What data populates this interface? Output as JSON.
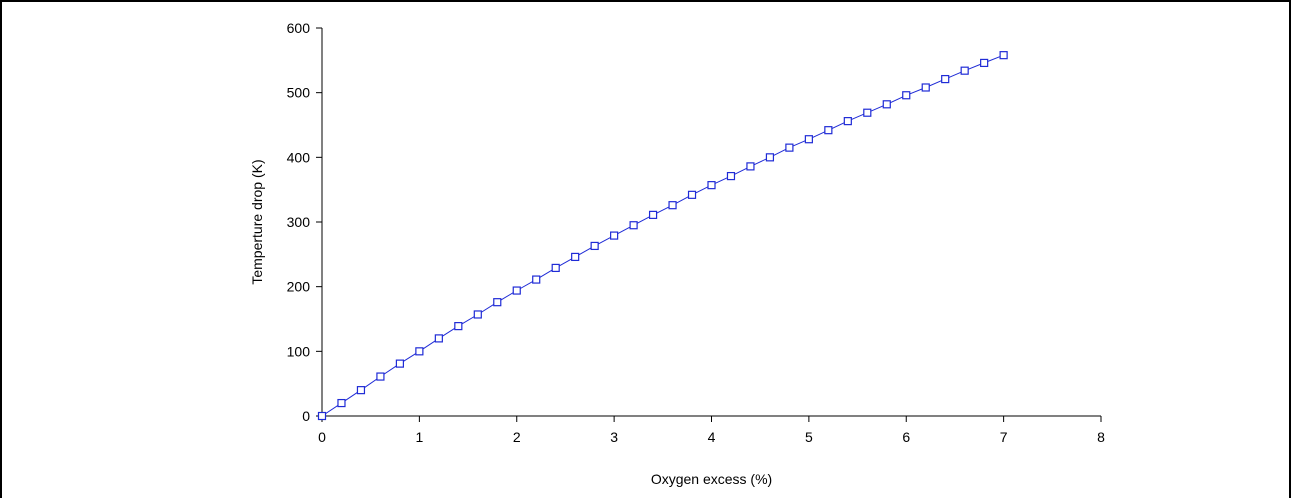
{
  "chart_data": {
    "type": "line",
    "title": "",
    "xlabel": "Oxygen excess (%)",
    "ylabel": "Temperture drop (K)",
    "xlim": [
      0,
      8
    ],
    "ylim": [
      0,
      600
    ],
    "x_ticks": [
      0,
      1,
      2,
      3,
      4,
      5,
      6,
      7,
      8
    ],
    "y_ticks": [
      0,
      100,
      200,
      300,
      400,
      500,
      600
    ],
    "grid": false,
    "legend": "none",
    "marker": "square",
    "series_color": "#1f2bd6",
    "series": [
      {
        "x": [
          0,
          0.2,
          0.4,
          0.6,
          0.8,
          1.0,
          1.2,
          1.4,
          1.6,
          1.8,
          2.0,
          2.2,
          2.4,
          2.6,
          2.8,
          3.0,
          3.2,
          3.4,
          3.6,
          3.8,
          4.0,
          4.2,
          4.4,
          4.6,
          4.8,
          5.0,
          5.2,
          5.4,
          5.6,
          5.8,
          6.0,
          6.2,
          6.4,
          6.6,
          6.8,
          7.0
        ],
        "values": [
          0,
          20,
          40,
          61,
          81,
          100,
          120,
          139,
          157,
          176,
          194,
          211,
          229,
          246,
          263,
          279,
          295,
          311,
          326,
          342,
          357,
          371,
          386,
          400,
          415,
          428,
          442,
          456,
          469,
          482,
          496,
          508,
          521,
          534,
          546,
          558
        ]
      }
    ]
  }
}
